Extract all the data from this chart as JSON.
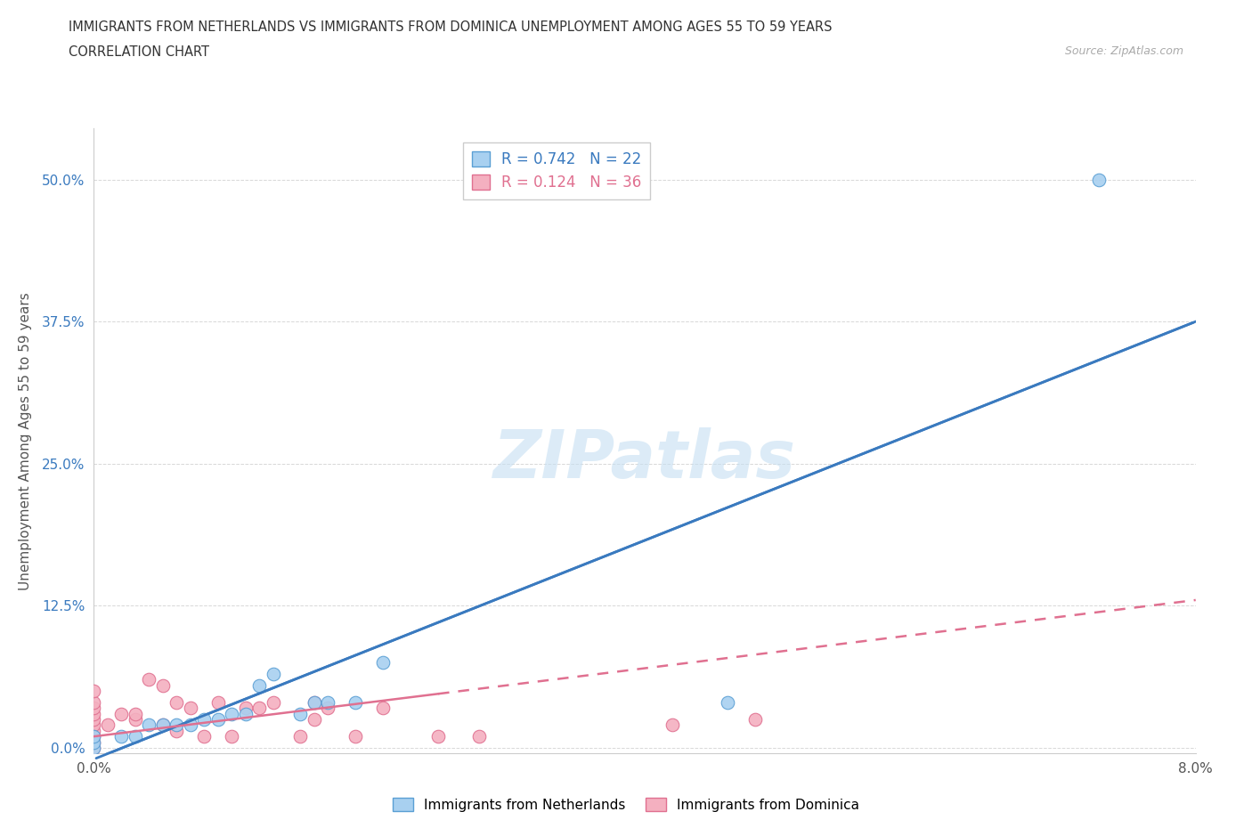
{
  "title_line1": "IMMIGRANTS FROM NETHERLANDS VS IMMIGRANTS FROM DOMINICA UNEMPLOYMENT AMONG AGES 55 TO 59 YEARS",
  "title_line2": "CORRELATION CHART",
  "source_text": "Source: ZipAtlas.com",
  "ylabel": "Unemployment Among Ages 55 to 59 years",
  "xlim": [
    0.0,
    0.08
  ],
  "ylim": [
    -0.005,
    0.545
  ],
  "netherlands_color": "#a8d0f0",
  "netherlands_edge": "#5a9fd4",
  "dominica_color": "#f4b0c0",
  "dominica_edge": "#e07090",
  "trendline_nl_color": "#3a7abf",
  "trendline_dom_color": "#e07090",
  "R_nl": 0.742,
  "N_nl": 22,
  "R_dom": 0.124,
  "N_dom": 36,
  "nl_x": [
    0.0,
    0.0,
    0.0,
    0.002,
    0.003,
    0.004,
    0.005,
    0.006,
    0.007,
    0.008,
    0.009,
    0.01,
    0.011,
    0.012,
    0.013,
    0.015,
    0.016,
    0.017,
    0.019,
    0.021,
    0.046,
    0.073
  ],
  "nl_y": [
    0.0,
    0.005,
    0.01,
    0.01,
    0.01,
    0.02,
    0.02,
    0.02,
    0.02,
    0.025,
    0.025,
    0.03,
    0.03,
    0.055,
    0.065,
    0.03,
    0.04,
    0.04,
    0.04,
    0.075,
    0.04,
    0.5
  ],
  "dom_x": [
    0.0,
    0.0,
    0.0,
    0.0,
    0.0,
    0.0,
    0.0,
    0.0,
    0.0,
    0.0,
    0.001,
    0.002,
    0.003,
    0.003,
    0.004,
    0.005,
    0.005,
    0.006,
    0.006,
    0.007,
    0.008,
    0.009,
    0.01,
    0.011,
    0.012,
    0.013,
    0.015,
    0.016,
    0.016,
    0.017,
    0.019,
    0.021,
    0.025,
    0.028,
    0.042,
    0.048
  ],
  "dom_y": [
    0.0,
    0.005,
    0.01,
    0.015,
    0.02,
    0.025,
    0.03,
    0.035,
    0.04,
    0.05,
    0.02,
    0.03,
    0.025,
    0.03,
    0.06,
    0.02,
    0.055,
    0.015,
    0.04,
    0.035,
    0.01,
    0.04,
    0.01,
    0.035,
    0.035,
    0.04,
    0.01,
    0.025,
    0.04,
    0.035,
    0.01,
    0.035,
    0.01,
    0.01,
    0.02,
    0.025
  ],
  "watermark": "ZIPatlas",
  "bg_color": "#ffffff",
  "grid_color": "#d8d8d8",
  "ytick_vals": [
    0.0,
    0.125,
    0.25,
    0.375,
    0.5
  ],
  "ytick_labels": [
    "0.0%",
    "12.5%",
    "25.0%",
    "37.5%",
    "50.0%"
  ],
  "xtick_vals": [
    0.0,
    0.01,
    0.02,
    0.03,
    0.04,
    0.05,
    0.06,
    0.07,
    0.08
  ],
  "xtick_labels": [
    "0.0%",
    "",
    "",
    "",
    "",
    "",
    "",
    "",
    "8.0%"
  ],
  "nl_trendline_x0": 0.0,
  "nl_trendline_y0": -0.01,
  "nl_trendline_x1": 0.08,
  "nl_trendline_y1": 0.375,
  "dom_trendline_x0": 0.0,
  "dom_trendline_y0": 0.01,
  "dom_trendline_x1": 0.08,
  "dom_trendline_y1": 0.13,
  "dom_solid_cutoff": 0.025
}
